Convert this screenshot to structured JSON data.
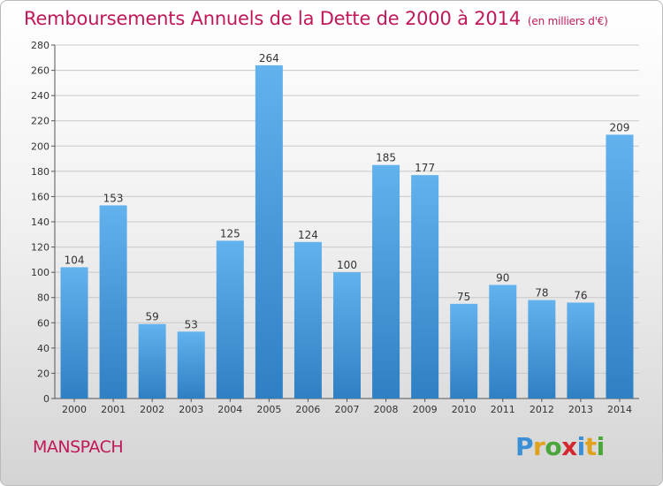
{
  "header": {
    "title": "Remboursements Annuels de la Dette de 2000 à 2014",
    "subtitle": "(en milliers d'€)"
  },
  "footer": {
    "town": "MANSPACH",
    "logo": "Proxiti"
  },
  "colors": {
    "title": "#c0185a",
    "bar_light": "#62b2ee",
    "bar_dark": "#2f7fc4"
  },
  "chart_data": {
    "type": "bar",
    "categories": [
      "2000",
      "2001",
      "2002",
      "2003",
      "2004",
      "2005",
      "2006",
      "2007",
      "2008",
      "2009",
      "2010",
      "2011",
      "2012",
      "2013",
      "2014"
    ],
    "values": [
      104,
      153,
      59,
      53,
      125,
      264,
      124,
      100,
      185,
      177,
      75,
      90,
      78,
      76,
      209
    ],
    "title": "Remboursements Annuels de la Dette de 2000 à 2014",
    "xlabel": "",
    "ylabel": "",
    "ylim": [
      0,
      280
    ],
    "yticks": [
      0,
      20,
      40,
      60,
      80,
      100,
      120,
      140,
      160,
      180,
      200,
      220,
      240,
      260,
      280
    ],
    "grid": true,
    "data_labels": true
  }
}
